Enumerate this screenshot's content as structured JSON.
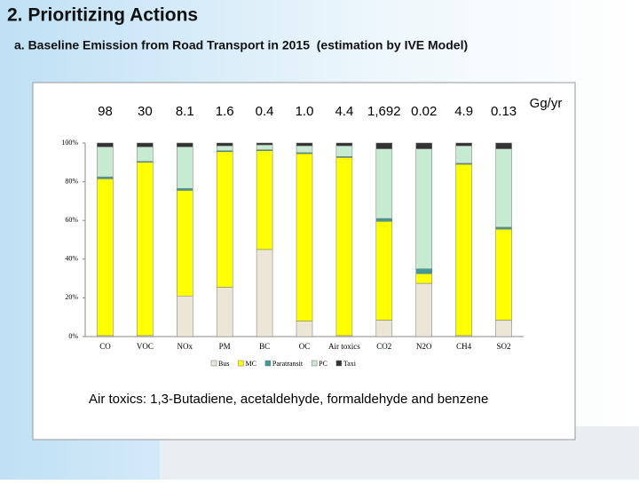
{
  "header": {
    "title": "2. Prioritizing Actions",
    "subtitle": "a. Baseline Emission from Road Transport in 2015  (estimation by IVE Model)"
  },
  "chart_data": {
    "type": "stacked-bar",
    "categories": [
      "CO",
      "VOC",
      "NOx",
      "PM",
      "BC",
      "OC",
      "Air toxics",
      "CO2",
      "N2O",
      "CH4",
      "SO2"
    ],
    "totals": {
      "values": [
        98,
        30,
        8.1,
        1.6,
        0.4,
        1.0,
        4.4,
        1692,
        0.02,
        4.9,
        0.13
      ],
      "value_labels": [
        "98",
        "30",
        "8.1",
        "1.6",
        "0.4",
        "1.0",
        "4.4",
        "1,692",
        "0.02",
        "4.9",
        "0.13"
      ]
    },
    "total_unit": "Gg/yr",
    "series": [
      {
        "name": "Bus",
        "color": "#ebe6d6",
        "values": [
          0.5,
          0.5,
          21,
          25.5,
          45,
          8,
          0.5,
          8.5,
          27.5,
          0.5,
          8.5
        ]
      },
      {
        "name": "MC",
        "color": "#ffff00",
        "values": [
          81,
          89.5,
          54.5,
          70,
          51,
          86.5,
          92,
          51,
          5,
          88.5,
          47
        ]
      },
      {
        "name": "Paratransit",
        "color": "#3f9a9a",
        "values": [
          1,
          0.5,
          1,
          0.5,
          0.5,
          0.5,
          0.5,
          1.5,
          2.5,
          0.5,
          1
        ]
      },
      {
        "name": "PC",
        "color": "#c6ebd0",
        "values": [
          15.5,
          7.5,
          21.5,
          2.5,
          2.5,
          3.5,
          5.5,
          36,
          62,
          9,
          40.5
        ]
      },
      {
        "name": "Taxi",
        "color": "#333333",
        "values": [
          2,
          2,
          2,
          1.5,
          1,
          1.5,
          1.5,
          3,
          3,
          1.5,
          3
        ]
      }
    ],
    "ylim": [
      0,
      100
    ],
    "yticks": [
      {
        "value": 0,
        "label": "0%"
      },
      {
        "value": 20,
        "label": "20%"
      },
      {
        "value": 40,
        "label": "40%"
      },
      {
        "value": 60,
        "label": "60%"
      },
      {
        "value": 80,
        "label": "80%"
      },
      {
        "value": 100,
        "label": "100%"
      }
    ],
    "legend": "bottom",
    "note": "Air toxics: 1,3-Butadiene, acetaldehyde, formaldehyde and benzene"
  }
}
